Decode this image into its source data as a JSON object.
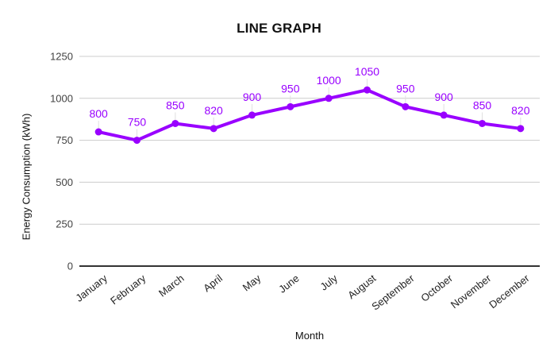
{
  "chart_data": {
    "type": "line",
    "title": "LINE GRAPH",
    "xlabel": "Month",
    "ylabel": "Energy Consumption (kWh)",
    "categories": [
      "January",
      "February",
      "March",
      "April",
      "May",
      "June",
      "July",
      "August",
      "September",
      "October",
      "November",
      "December"
    ],
    "values": [
      800,
      750,
      850,
      820,
      900,
      950,
      1000,
      1050,
      950,
      900,
      850,
      820
    ],
    "yticks": [
      0,
      250,
      500,
      750,
      1000,
      1250
    ],
    "ylim": [
      0,
      1250
    ],
    "grid": true,
    "legend_position": "none",
    "series_color": "#9900ff",
    "value_label_color": "#9900ff",
    "grid_color": "#cccccc",
    "axis_line_color": "#333333",
    "callout_line_color": "#e0e0e0",
    "tick_label_color": "#424242"
  }
}
